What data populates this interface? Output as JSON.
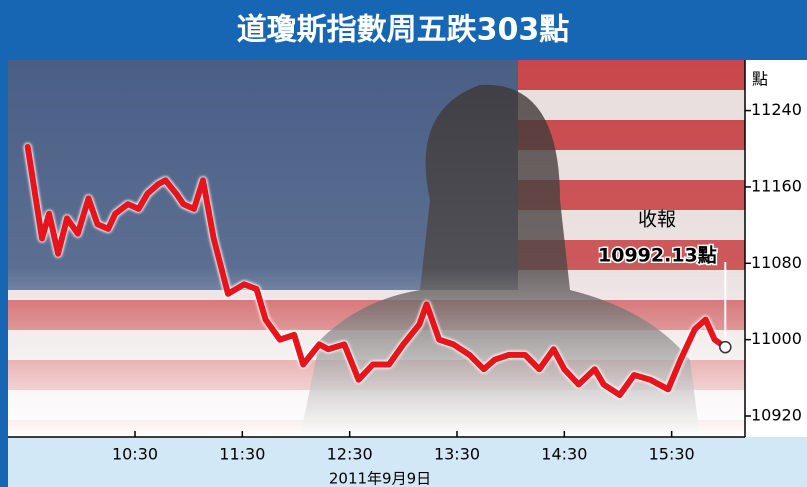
{
  "chart_data": {
    "type": "line",
    "title": "道瓊斯指數周五跌303點",
    "y_unit": "點",
    "date_label": "2011年9月9日",
    "annotation": {
      "label": "收報",
      "value_label": "10992.13點"
    },
    "x": [
      570,
      578,
      582,
      587,
      592,
      598,
      604,
      609,
      615,
      619,
      626,
      632,
      637,
      643,
      647,
      653,
      657,
      663,
      668,
      674,
      682,
      691,
      698,
      703,
      711,
      719,
      724,
      733,
      738,
      747,
      755,
      763,
      772,
      780,
      789,
      793,
      800,
      808,
      817,
      825,
      831,
      839,
      848,
      856,
      864,
      870,
      878,
      887,
      892,
      901,
      909,
      918,
      928,
      935,
      943,
      949,
      954,
      960
    ],
    "series": [
      {
        "name": "道瓊斯指數",
        "color": "#e8141c",
        "values": [
          11202,
          11106,
          11132,
          11090,
          11127,
          11111,
          11148,
          11121,
          11116,
          11132,
          11142,
          11137,
          11153,
          11163,
          11167,
          11153,
          11142,
          11137,
          11167,
          11106,
          11048,
          11058,
          11053,
          11021,
          11000,
          11005,
          10974,
          10995,
          10990,
          10995,
          10958,
          10974,
          10974,
          10995,
          11016,
          11037,
          11000,
          10995,
          10984,
          10969,
          10979,
          10984,
          10984,
          10969,
          10990,
          10969,
          10953,
          10969,
          10953,
          10942,
          10963,
          10958,
          10948,
          10979,
          11011,
          11021,
          11000,
          10992.13
        ]
      }
    ],
    "xlim": [
      559,
      971
    ],
    "xticks": [
      {
        "value": 630,
        "label": "10:30"
      },
      {
        "value": 690,
        "label": "11:30"
      },
      {
        "value": 750,
        "label": "12:30"
      },
      {
        "value": 810,
        "label": "13:30"
      },
      {
        "value": 870,
        "label": "14:30"
      },
      {
        "value": 930,
        "label": "15:30"
      }
    ],
    "ylim": [
      10898,
      11293
    ],
    "yticks": [
      10920,
      11000,
      11080,
      11160,
      11240
    ]
  }
}
